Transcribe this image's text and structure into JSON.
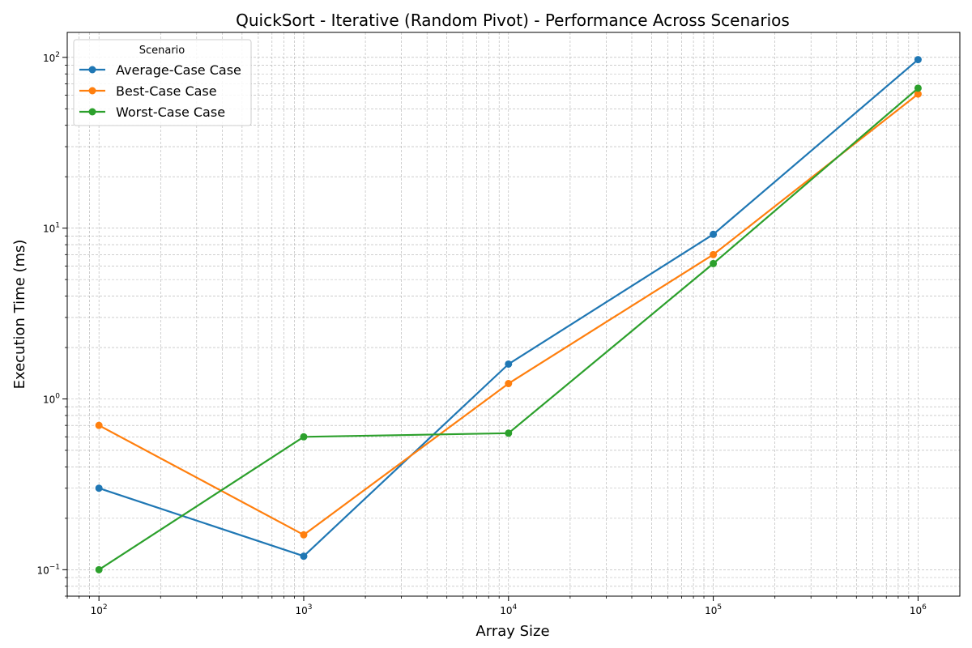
{
  "chart_data": {
    "type": "line",
    "title": "QuickSort - Iterative (Random Pivot) - Performance Across Scenarios",
    "xlabel": "Array Size",
    "ylabel": "Execution Time (ms)",
    "xscale": "log",
    "yscale": "log",
    "xlim": [
      70,
      1600000
    ],
    "ylim": [
      0.07,
      140
    ],
    "grid": true,
    "legend": {
      "title": "Scenario",
      "placement": "top-left"
    },
    "x": [
      100,
      1000,
      10000,
      100000,
      1000000
    ],
    "x_tick_labels": [
      {
        "base": "10",
        "exp": "2"
      },
      {
        "base": "10",
        "exp": "3"
      },
      {
        "base": "10",
        "exp": "4"
      },
      {
        "base": "10",
        "exp": "5"
      },
      {
        "base": "10",
        "exp": "6"
      }
    ],
    "y_tick_labels": [
      {
        "base": "10",
        "exp": "−1"
      },
      {
        "base": "10",
        "exp": "0"
      },
      {
        "base": "10",
        "exp": "1"
      },
      {
        "base": "10",
        "exp": "2"
      }
    ],
    "series": [
      {
        "name": "Average-Case Case",
        "color": "#1f77b4",
        "values": [
          0.3,
          0.12,
          1.6,
          9.2,
          97
        ]
      },
      {
        "name": "Best-Case Case",
        "color": "#ff7f0e",
        "values": [
          0.7,
          0.16,
          1.23,
          7.0,
          61
        ]
      },
      {
        "name": "Worst-Case Case",
        "color": "#2ca02c",
        "values": [
          0.1,
          0.6,
          0.63,
          6.2,
          66
        ]
      }
    ]
  }
}
